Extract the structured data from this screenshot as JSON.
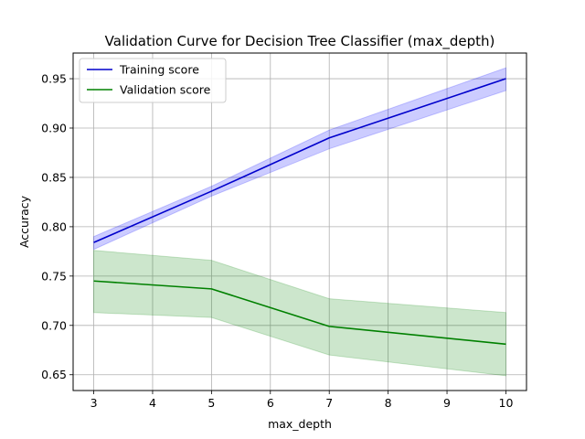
{
  "chart_data": {
    "type": "line",
    "title": "Validation Curve for Decision Tree Classifier (max_depth)",
    "xlabel": "max_depth",
    "ylabel": "Accuracy",
    "x": [
      3,
      5,
      7,
      10
    ],
    "xticks": [
      3,
      4,
      5,
      6,
      7,
      8,
      9,
      10
    ],
    "yticks": [
      0.65,
      0.7,
      0.75,
      0.8,
      0.85,
      0.9,
      0.95
    ],
    "xlim": [
      2.65,
      10.35
    ],
    "ylim": [
      0.634,
      0.976
    ],
    "grid": true,
    "legend_position": "top-left",
    "series": [
      {
        "name": "Training score",
        "color": "#0000cc",
        "band_color": "#0000ff",
        "values": [
          0.784,
          0.836,
          0.89,
          0.95
        ],
        "upper": [
          0.79,
          0.841,
          0.898,
          0.961
        ],
        "lower": [
          0.777,
          0.831,
          0.879,
          0.938
        ]
      },
      {
        "name": "Validation score",
        "color": "#008000",
        "band_color": "#008000",
        "values": [
          0.745,
          0.737,
          0.699,
          0.681
        ],
        "upper": [
          0.776,
          0.766,
          0.727,
          0.713
        ],
        "lower": [
          0.713,
          0.708,
          0.67,
          0.649
        ]
      }
    ]
  }
}
